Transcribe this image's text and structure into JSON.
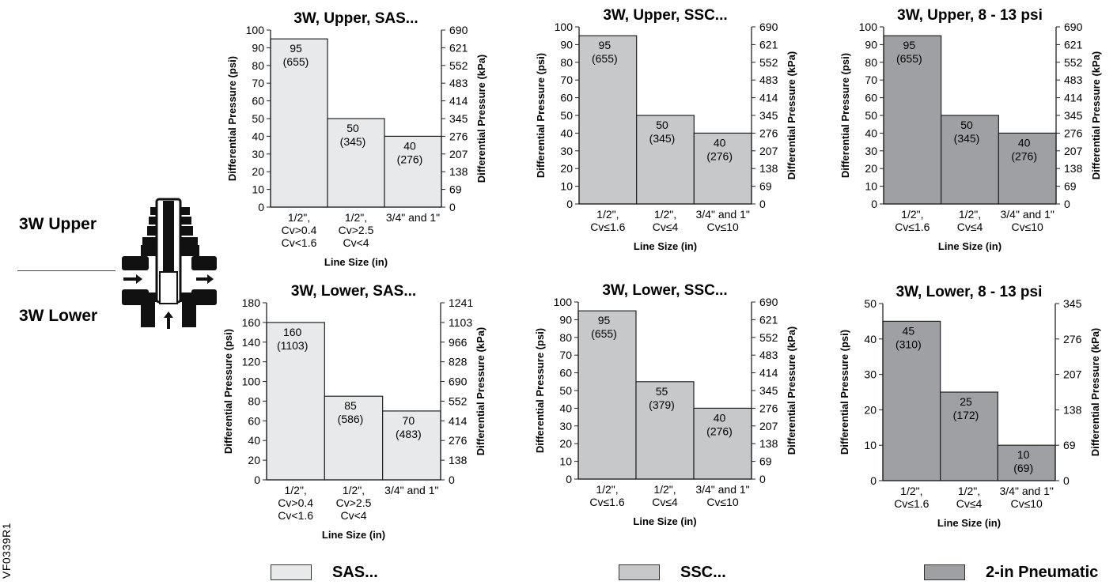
{
  "side_labels": {
    "upper": "3W Upper",
    "lower": "3W Lower"
  },
  "figure_id": "VF0339R1",
  "legend": [
    {
      "label": "SAS...",
      "color": "#e8e9ea"
    },
    {
      "label": "SSC...",
      "color": "#c7c8ca"
    },
    {
      "label": "2-in Pneumatic",
      "color": "#9ea0a3"
    }
  ],
  "chart_data": [
    {
      "type": "bar",
      "title": "3W, Upper, SAS...",
      "xlabel": "Line Size (in)",
      "ylabel": "Differential Pressure (psi)",
      "ylabel_right": "Differential Pressure (kPa)",
      "ylim": [
        0,
        100
      ],
      "yticks": [
        "0",
        "10",
        "20",
        "30",
        "40",
        "50",
        "60",
        "70",
        "80",
        "90",
        "100"
      ],
      "yticks_right": [
        "0",
        "69",
        "138",
        "207",
        "276",
        "345",
        "414",
        "483",
        "552",
        "621",
        "690"
      ],
      "categories": [
        [
          "1/2\",",
          "Cv>0.4",
          "Cv<1.6"
        ],
        [
          "1/2\",",
          "Cv>2.5",
          "Cv<4"
        ],
        [
          "3/4\" and 1\""
        ]
      ],
      "values": [
        95,
        50,
        40
      ],
      "labels": [
        [
          "95",
          "(655)"
        ],
        [
          "50",
          "(345)"
        ],
        [
          "40",
          "(276)"
        ]
      ],
      "color": "#e8e9ea"
    },
    {
      "type": "bar",
      "title": "3W, Upper, SSC...",
      "xlabel": "Line Size (in)",
      "ylabel": "Differential Pressure (psi)",
      "ylabel_right": "Differential Pressure (kPa)",
      "ylim": [
        0,
        100
      ],
      "yticks": [
        "0",
        "10",
        "20",
        "30",
        "40",
        "50",
        "60",
        "70",
        "80",
        "90",
        "100"
      ],
      "yticks_right": [
        "0",
        "69",
        "138",
        "207",
        "276",
        "345",
        "414",
        "483",
        "552",
        "621",
        "690"
      ],
      "categories": [
        [
          "1/2\",",
          "Cv≤1.6"
        ],
        [
          "1/2\",",
          "Cv≤4"
        ],
        [
          "3/4\" and 1\"",
          "Cv≤10"
        ]
      ],
      "values": [
        95,
        50,
        40
      ],
      "labels": [
        [
          "95",
          "(655)"
        ],
        [
          "50",
          "(345)"
        ],
        [
          "40",
          "(276)"
        ]
      ],
      "color": "#c7c8ca"
    },
    {
      "type": "bar",
      "title": "3W, Upper, 8 - 13 psi",
      "xlabel": "Line Size (in)",
      "ylabel": "Differential Pressure (psi)",
      "ylabel_right": "Differential Pressure (kPa)",
      "ylim": [
        0,
        100
      ],
      "yticks": [
        "0",
        "10",
        "20",
        "30",
        "40",
        "50",
        "60",
        "70",
        "80",
        "90",
        "100"
      ],
      "yticks_right": [
        "0",
        "69",
        "138",
        "207",
        "276",
        "345",
        "414",
        "483",
        "552",
        "621",
        "690"
      ],
      "categories": [
        [
          "1/2\",",
          "Cv≤1.6"
        ],
        [
          "1/2\",",
          "Cv≤4"
        ],
        [
          "3/4\" and 1\"",
          "Cv≤10"
        ]
      ],
      "values": [
        95,
        50,
        40
      ],
      "labels": [
        [
          "95",
          "(655)"
        ],
        [
          "50",
          "(345)"
        ],
        [
          "40",
          "(276)"
        ]
      ],
      "color": "#9ea0a3"
    },
    {
      "type": "bar",
      "title": "3W, Lower, SAS...",
      "xlabel": "Line Size (in)",
      "ylabel": "Differential Pressure (psi)",
      "ylabel_right": "Differential Pressure (kPa)",
      "ylim": [
        0,
        180
      ],
      "yticks": [
        "0",
        "20",
        "40",
        "60",
        "80",
        "100",
        "120",
        "140",
        "160",
        "180"
      ],
      "yticks_right": [
        "0",
        "138",
        "276",
        "414",
        "552",
        "690",
        "828",
        "966",
        "1103",
        "1241"
      ],
      "categories": [
        [
          "1/2\",",
          "Cv>0.4",
          "Cv<1.6"
        ],
        [
          "1/2\",",
          "Cv>2.5",
          "Cv<4"
        ],
        [
          "3/4\" and 1\""
        ]
      ],
      "values": [
        160,
        85,
        70
      ],
      "labels": [
        [
          "160",
          "(1103)"
        ],
        [
          "85",
          "(586)"
        ],
        [
          "70",
          "(483)"
        ]
      ],
      "color": "#e8e9ea"
    },
    {
      "type": "bar",
      "title": "3W, Lower, SSC...",
      "xlabel": "Line Size (in)",
      "ylabel": "Differential Pressure (psi)",
      "ylabel_right": "Differential Pressure (kPa)",
      "ylim": [
        0,
        100
      ],
      "yticks": [
        "0",
        "10",
        "20",
        "30",
        "40",
        "50",
        "60",
        "70",
        "80",
        "90",
        "100"
      ],
      "yticks_right": [
        "0",
        "69",
        "138",
        "207",
        "276",
        "345",
        "414",
        "483",
        "552",
        "621",
        "690"
      ],
      "categories": [
        [
          "1/2\",",
          "Cv≤1.6"
        ],
        [
          "1/2\",",
          "Cv≤4"
        ],
        [
          "3/4\" and 1\"",
          "Cv≤10"
        ]
      ],
      "values": [
        95,
        55,
        40
      ],
      "labels": [
        [
          "95",
          "(655)"
        ],
        [
          "55",
          "(379)"
        ],
        [
          "40",
          "(276)"
        ]
      ],
      "color": "#c7c8ca"
    },
    {
      "type": "bar",
      "title": "3W, Lower, 8 - 13 psi",
      "xlabel": "Line Size (in)",
      "ylabel": "Differential Pressure (psi)",
      "ylabel_right": "Differential Pressure (kPa)",
      "ylim": [
        0,
        50
      ],
      "yticks": [
        "0",
        "10",
        "20",
        "30",
        "40",
        "50"
      ],
      "yticks_right": [
        "0",
        "69",
        "138",
        "207",
        "276",
        "345"
      ],
      "categories": [
        [
          "1/2\",",
          "Cv≤1.6"
        ],
        [
          "1/2\",",
          "Cv≤4"
        ],
        [
          "3/4\" and 1\"",
          "Cv≤10"
        ]
      ],
      "values": [
        45,
        25,
        10
      ],
      "labels": [
        [
          "45",
          "(310)"
        ],
        [
          "25",
          "(172)"
        ],
        [
          "10",
          "(69)"
        ]
      ],
      "color": "#9ea0a3"
    }
  ]
}
